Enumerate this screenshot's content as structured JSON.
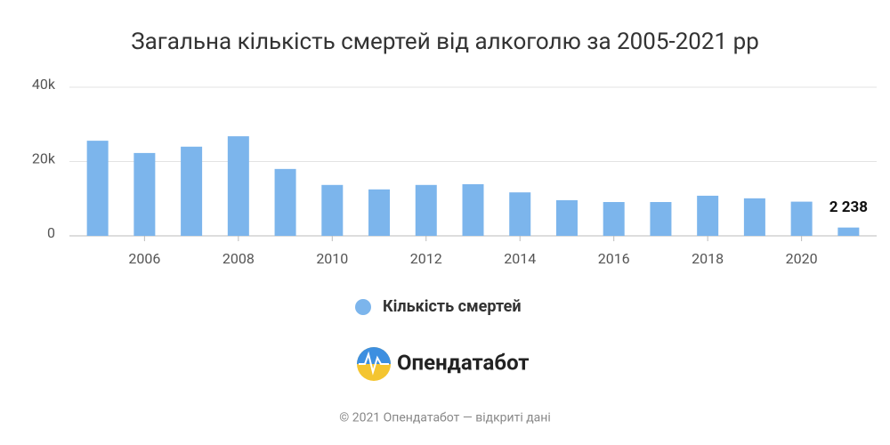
{
  "chart_data": {
    "type": "bar",
    "title": "Загальна кількість смертей від алкоголю за 2005-2021 рр",
    "x": [
      2005,
      2006,
      2007,
      2008,
      2009,
      2010,
      2011,
      2012,
      2013,
      2014,
      2015,
      2016,
      2017,
      2018,
      2019,
      2020,
      2021
    ],
    "series": [
      {
        "name": "Кількість смертей",
        "color": "#7cb5ec",
        "values": [
          25600,
          22300,
          24000,
          26800,
          18000,
          13700,
          12500,
          13700,
          13900,
          11700,
          9600,
          9100,
          9100,
          10800,
          10100,
          9200,
          2238
        ],
        "value_labels": [
          null,
          null,
          null,
          null,
          null,
          null,
          null,
          null,
          null,
          null,
          null,
          null,
          null,
          null,
          null,
          null,
          "2 238"
        ]
      }
    ],
    "xlim": [
      2004.4,
      2021.6
    ],
    "xticks": [
      2006,
      2008,
      2010,
      2012,
      2014,
      2016,
      2018,
      2020
    ],
    "ylim": [
      0,
      40000
    ],
    "yticks": [
      {
        "value": 0,
        "label": "0"
      },
      {
        "value": 20000,
        "label": "20k"
      },
      {
        "value": 40000,
        "label": "40k"
      }
    ],
    "grid": true
  },
  "branding": {
    "logo": "Опендатабот",
    "footer": "© 2021 Опендатабот — відкриті дані"
  }
}
